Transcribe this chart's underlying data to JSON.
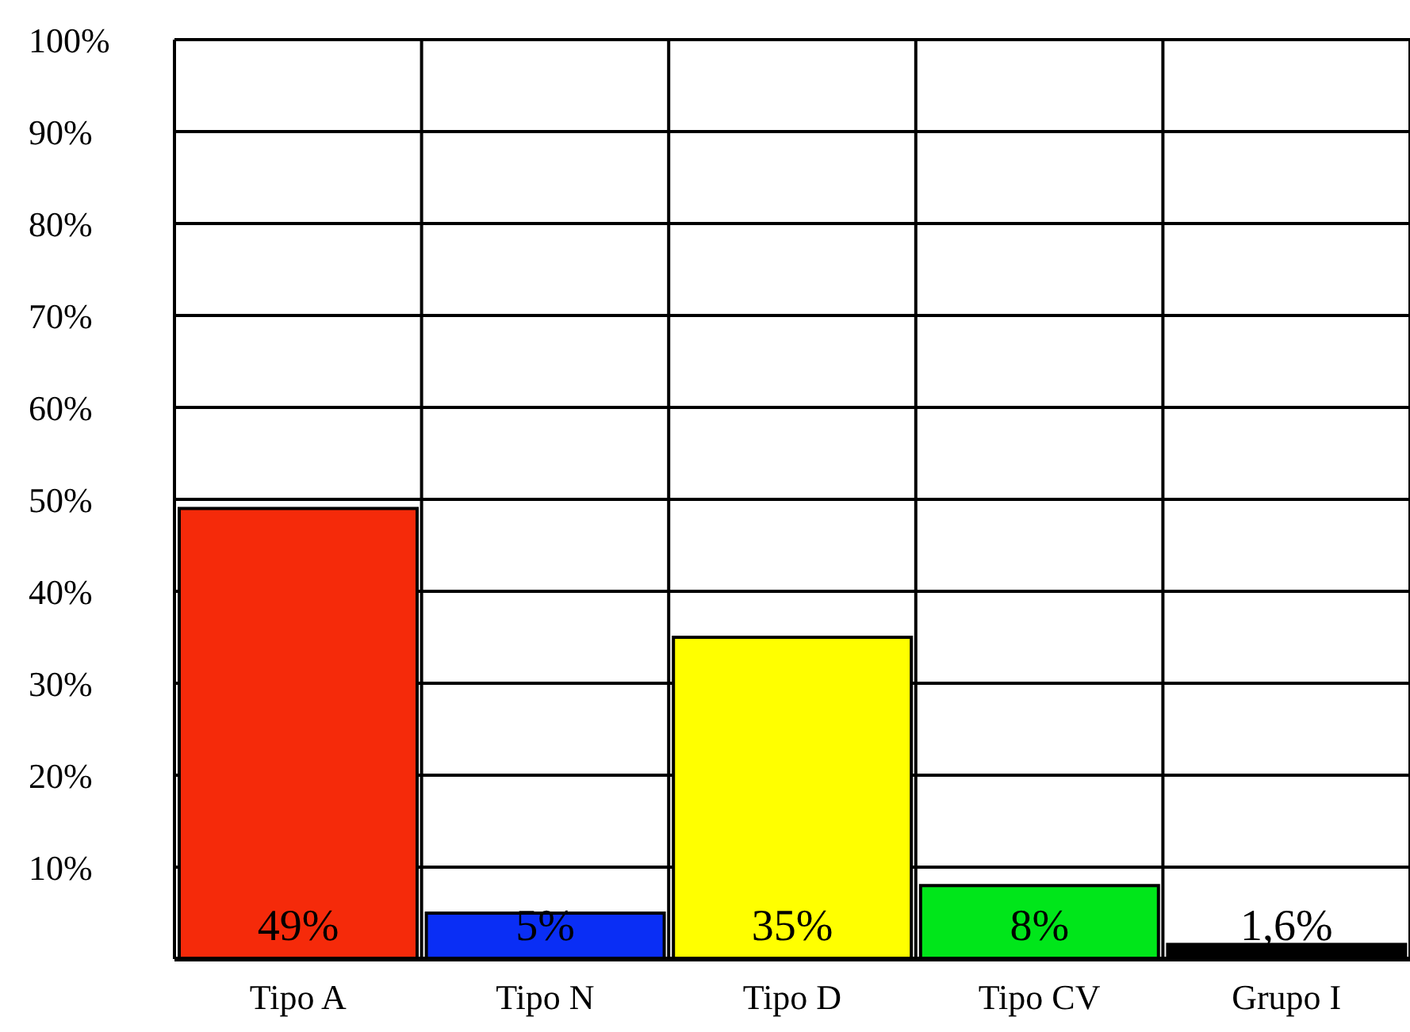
{
  "chart_data": {
    "type": "bar",
    "categories": [
      "Tipo A",
      "Tipo N",
      "Tipo D",
      "Tipo CV",
      "Grupo I"
    ],
    "values": [
      49,
      5,
      35,
      8,
      1.6
    ],
    "colors": [
      "#f52a0a",
      "#0a2ef5",
      "#ffff00",
      "#00e61a",
      "#000000"
    ],
    "value_labels": [
      "49%",
      "5%",
      "35%",
      "8%",
      "1,6%"
    ],
    "ylim": [
      0,
      100
    ],
    "yticks": [
      {
        "value": 10,
        "label": "10%"
      },
      {
        "value": 20,
        "label": "20%"
      },
      {
        "value": 30,
        "label": "30%"
      },
      {
        "value": 40,
        "label": "40%"
      },
      {
        "value": 50,
        "label": "50%"
      },
      {
        "value": 60,
        "label": "60%"
      },
      {
        "value": 70,
        "label": "70%"
      },
      {
        "value": 80,
        "label": "80%"
      },
      {
        "value": 90,
        "label": "90%"
      },
      {
        "value": 100,
        "label": "100%"
      }
    ],
    "grid": true
  }
}
